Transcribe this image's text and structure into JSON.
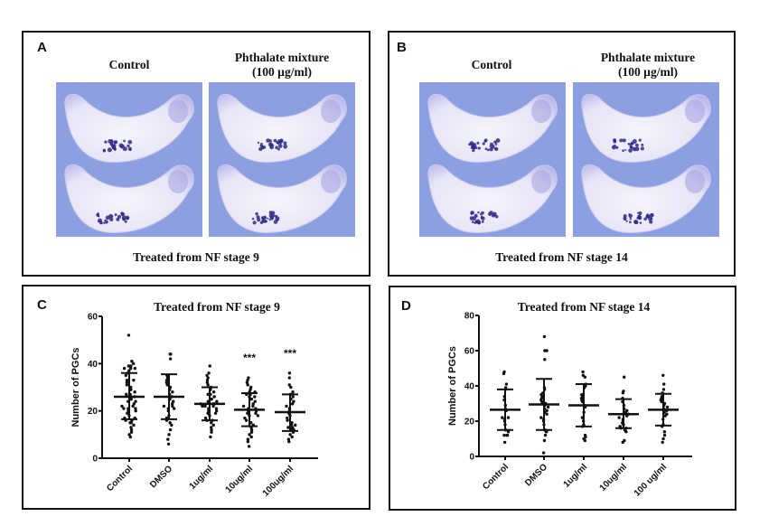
{
  "panels": {
    "A": {
      "letter": "A",
      "left_label": "Control",
      "right_label_line1": "Phthalate mixture",
      "right_label_line2": "(100 µg/ml)",
      "caption": "Treated from NF stage 9"
    },
    "B": {
      "letter": "B",
      "left_label": "Control",
      "right_label_line1": "Phthalate mixture",
      "right_label_line2": "(100 µg/ml)",
      "caption": "Treated from NF stage 14"
    },
    "C": {
      "letter": "C"
    },
    "D": {
      "letter": "D"
    }
  },
  "colors": {
    "photo_bg": "#8c9fe0",
    "embryo": "#e6e4f6",
    "stain": "#2e2a8a",
    "ink": "#111111"
  },
  "chart_data": [
    {
      "id": "C",
      "type": "scatter",
      "title": "Treated from NF stage 9",
      "xlabel": "",
      "ylabel": "Number of PGCs",
      "ylim": [
        0,
        60
      ],
      "yticks": [
        0,
        20,
        40,
        60
      ],
      "categories": [
        "Control",
        "DMSO",
        "1ug/ml",
        "10ug/ml",
        "100ug/ml"
      ],
      "annotations": [
        "",
        "",
        "",
        "***",
        "***"
      ],
      "summary": [
        {
          "mean": 26,
          "sd_low": 16.5,
          "sd_high": 36
        },
        {
          "mean": 26,
          "sd_low": 16.5,
          "sd_high": 35.5
        },
        {
          "mean": 23,
          "sd_low": 16,
          "sd_high": 30
        },
        {
          "mean": 20.5,
          "sd_low": 13.5,
          "sd_high": 27.5
        },
        {
          "mean": 19.5,
          "sd_low": 11.5,
          "sd_high": 27
        }
      ],
      "series": [
        {
          "name": "Control",
          "values": [
            52,
            41,
            40,
            39,
            39,
            38,
            38,
            38,
            37,
            36,
            35,
            33,
            33,
            32,
            31,
            30,
            29,
            29,
            28,
            27,
            27,
            26,
            26,
            25,
            25,
            24,
            24,
            23,
            22,
            22,
            21,
            21,
            21,
            20,
            20,
            19,
            18,
            17,
            17,
            16,
            16,
            15,
            15,
            14,
            13,
            12,
            11,
            10,
            9
          ]
        },
        {
          "name": "DMSO",
          "values": [
            44,
            44,
            42,
            35,
            34,
            33,
            32,
            31,
            30,
            29,
            28,
            27,
            26,
            25,
            24,
            23,
            22,
            22,
            21,
            21,
            20,
            18,
            17,
            16,
            15,
            14,
            12,
            10,
            8,
            6
          ]
        },
        {
          "name": "1ug/ml",
          "values": [
            39,
            36,
            35,
            34,
            33,
            32,
            31,
            30,
            29,
            28,
            27,
            27,
            26,
            25,
            25,
            24,
            24,
            23,
            23,
            23,
            22,
            22,
            22,
            21,
            21,
            20,
            20,
            19,
            19,
            18,
            17,
            16,
            16,
            15,
            14,
            13,
            12,
            11,
            9
          ]
        },
        {
          "name": "10ug/ml",
          "values": [
            34,
            33,
            32,
            31,
            30,
            29,
            28,
            28,
            27,
            27,
            26,
            26,
            25,
            25,
            24,
            23,
            22,
            22,
            21,
            21,
            20,
            20,
            19,
            19,
            18,
            18,
            17,
            16,
            15,
            15,
            14,
            13,
            12,
            11,
            10,
            9,
            8,
            7,
            5
          ]
        },
        {
          "name": "100ug/ml",
          "values": [
            36,
            34,
            31,
            30,
            28,
            27,
            26,
            25,
            24,
            23,
            22,
            21,
            20,
            19,
            18,
            17,
            16,
            15,
            14,
            14,
            13,
            13,
            12,
            12,
            11,
            10,
            9,
            8,
            7
          ]
        }
      ]
    },
    {
      "id": "D",
      "type": "scatter",
      "title": "Treated from NF stage 14",
      "xlabel": "",
      "ylabel": "Number of PGCs",
      "ylim": [
        0,
        80
      ],
      "yticks": [
        0,
        20,
        40,
        60,
        80
      ],
      "categories": [
        "Control",
        "DMSO",
        "1ug/ml",
        "10ug/ml",
        "100 ug/ml"
      ],
      "annotations": [
        "",
        "",
        "",
        "",
        ""
      ],
      "summary": [
        {
          "mean": 26.5,
          "sd_low": 15,
          "sd_high": 38
        },
        {
          "mean": 29.5,
          "sd_low": 15,
          "sd_high": 44
        },
        {
          "mean": 29,
          "sd_low": 17,
          "sd_high": 41
        },
        {
          "mean": 24,
          "sd_low": 16,
          "sd_high": 32.5
        },
        {
          "mean": 26.5,
          "sd_low": 17.5,
          "sd_high": 35.5
        }
      ],
      "series": [
        {
          "name": "Control",
          "values": [
            48,
            47,
            41,
            39,
            38,
            34,
            32,
            29,
            27,
            26,
            22,
            22,
            21,
            20,
            18,
            15,
            14,
            12,
            12,
            12,
            8
          ]
        },
        {
          "name": "DMSO",
          "values": [
            68,
            60,
            60,
            55,
            39,
            38,
            36,
            35,
            34,
            33,
            32,
            31,
            30,
            30,
            29,
            28,
            27,
            26,
            25,
            24,
            22,
            21,
            20,
            18,
            15,
            14,
            14,
            12,
            9,
            2
          ]
        },
        {
          "name": "1ug/ml",
          "values": [
            48,
            46,
            45,
            41,
            40,
            39,
            35,
            34,
            33,
            32,
            31,
            29,
            28,
            25,
            22,
            20,
            18,
            17,
            12,
            11,
            10,
            9
          ]
        },
        {
          "name": "10ug/ml",
          "values": [
            45,
            37,
            36,
            33,
            31,
            29,
            27,
            26,
            25,
            25,
            24,
            24,
            23,
            22,
            21,
            20,
            19,
            18,
            17,
            16,
            16,
            15,
            14,
            9,
            8
          ]
        },
        {
          "name": "100 ug/ml",
          "values": [
            46,
            41,
            38,
            36,
            34,
            33,
            32,
            31,
            30,
            29,
            28,
            27,
            26,
            26,
            25,
            24,
            23,
            21,
            18,
            17,
            14,
            12,
            10,
            8
          ]
        }
      ]
    }
  ]
}
